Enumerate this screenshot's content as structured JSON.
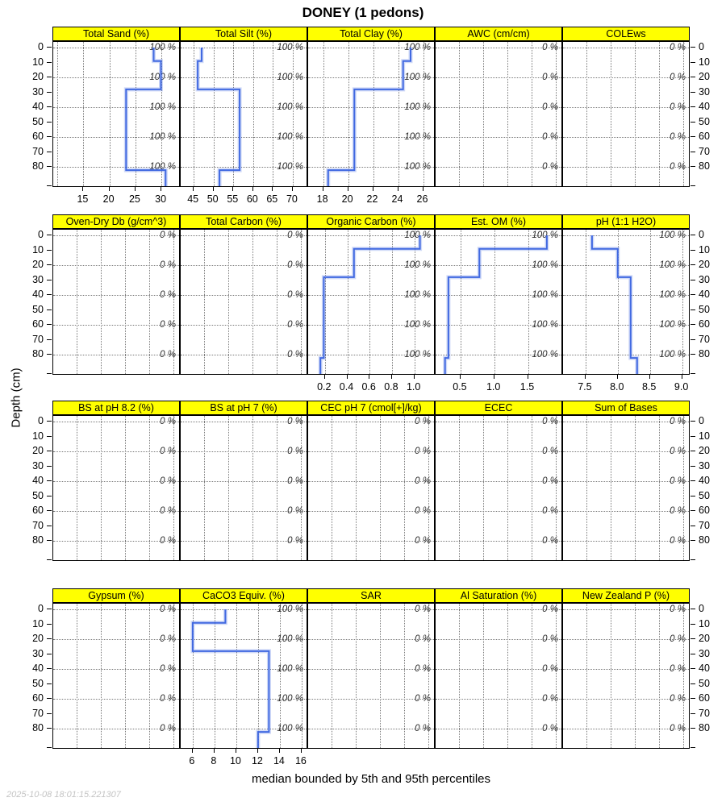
{
  "title": "DONEY (1 pedons)",
  "caption": "median bounded by 5th and 95th percentiles",
  "timestamp": "2025-10-08 18:01:15.221307",
  "y_axis": {
    "label": "Depth (cm)",
    "ticks": [
      0,
      10,
      20,
      30,
      40,
      50,
      60,
      70,
      80
    ],
    "max_depth": 93
  },
  "colors": {
    "strip_bg": "#ffff00",
    "line": "#4169e1",
    "band": "rgba(65,105,225,0.25)",
    "grid": "#7a7a7a"
  },
  "chart_data": {
    "type": "line",
    "note": "step depth-profiles; values[i] spans horizon_depths[i] to horizon_depths[i+1]",
    "horizon_depths": [
      0,
      9,
      28,
      82,
      93
    ],
    "gridline_depths": [
      0,
      20,
      40,
      60,
      80
    ],
    "rows": [
      {
        "panels": [
          {
            "label": "Total Sand (%)",
            "contributing_fraction": "100 %",
            "xlim": [
              9.2,
              33.7
            ],
            "x_ticks": [
              "15",
              "20",
              "25",
              "30"
            ],
            "x_gridlines": [
              10,
              15,
              20,
              25,
              30
            ],
            "values": [
              28.5,
              29.9,
              23.2,
              30.8
            ]
          },
          {
            "label": "Total Silt (%)",
            "contributing_fraction": "100 %",
            "xlim": [
              41.7,
              73.9
            ],
            "x_ticks": [
              "45",
              "50",
              "55",
              "60",
              "65",
              "70"
            ],
            "values": [
              47,
              46,
              56.6,
              51.5
            ]
          },
          {
            "label": "Total Clay (%)",
            "contributing_fraction": "100 %",
            "xlim": [
              16.8,
              27.0
            ],
            "x_ticks": [
              "18",
              "20",
              "22",
              "24",
              "26"
            ],
            "values": [
              25,
              24.4,
              20.5,
              18.4
            ]
          },
          {
            "label": "AWC (cm/cm)",
            "contributing_fraction": "0 %"
          },
          {
            "label": "COLEws",
            "contributing_fraction": "0 %"
          }
        ]
      },
      {
        "panels": [
          {
            "label": "Oven-Dry Db (g/cm^3)",
            "contributing_fraction": "0 %"
          },
          {
            "label": "Total Carbon (%)",
            "contributing_fraction": "0 %"
          },
          {
            "label": "Organic Carbon (%)",
            "contributing_fraction": "100 %",
            "xlim": [
              0.05,
              1.19
            ],
            "x_ticks": [
              "0.2",
              "0.4",
              "0.6",
              "0.8",
              "1.0"
            ],
            "values": [
              1.05,
              0.46,
              0.19,
              0.16
            ]
          },
          {
            "label": "Est. OM (%)",
            "contributing_fraction": "100 %",
            "xlim": [
              0.13,
              2.02
            ],
            "x_ticks": [
              "0.5",
              "1.0",
              "1.5"
            ],
            "values": [
              1.78,
              0.78,
              0.32,
              0.27
            ]
          },
          {
            "label": "pH (1:1 H2O)",
            "contributing_fraction": "100 %",
            "xlim": [
              7.15,
              9.13
            ],
            "x_ticks": [
              "7.5",
              "8.0",
              "8.5",
              "9.0"
            ],
            "values": [
              7.6,
              8.0,
              8.2,
              8.3
            ]
          }
        ]
      },
      {
        "panels": [
          {
            "label": "BS at pH 8.2 (%)",
            "contributing_fraction": "0 %"
          },
          {
            "label": "BS at pH 7 (%)",
            "contributing_fraction": "0 %"
          },
          {
            "label": "CEC pH 7 (cmol[+]/kg)",
            "contributing_fraction": "0 %"
          },
          {
            "label": "ECEC",
            "contributing_fraction": "0 %"
          },
          {
            "label": "Sum of Bases",
            "contributing_fraction": "0 %"
          }
        ]
      },
      {
        "panels": [
          {
            "label": "Gypsum (%)",
            "contributing_fraction": "0 %"
          },
          {
            "label": "CaCO3 Equiv. (%)",
            "contributing_fraction": "100 %",
            "xlim": [
              4.9,
              16.6
            ],
            "x_ticks": [
              "6",
              "8",
              "10",
              "12",
              "14",
              "16"
            ],
            "values": [
              9,
              6,
              13,
              12
            ]
          },
          {
            "label": "SAR",
            "contributing_fraction": "0 %"
          },
          {
            "label": "Al Saturation (%)",
            "contributing_fraction": "0 %"
          },
          {
            "label": "New Zealand P (%)",
            "contributing_fraction": "0 %"
          }
        ]
      }
    ]
  }
}
